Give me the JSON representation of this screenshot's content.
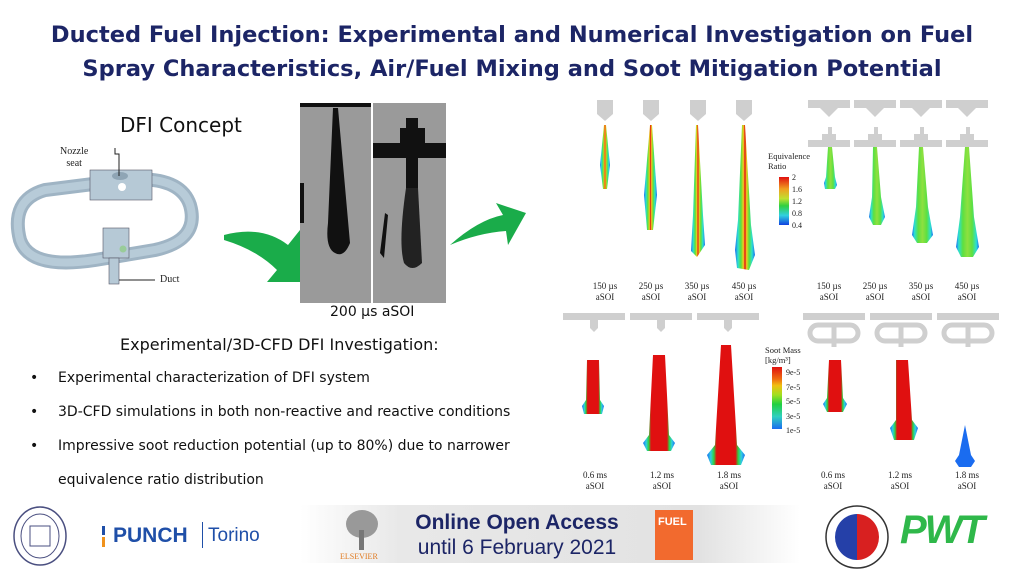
{
  "title": {
    "line1": "Ducted Fuel Injection: Experimental and Numerical Investigation on Fuel",
    "line2": "Spray Characteristics, Air/Fuel Mixing and Soot Mitigation Potential"
  },
  "concept": {
    "heading": "DFI Concept",
    "nozzle_label_1": "Nozzle",
    "nozzle_label_2": "seat",
    "duct_label": "Duct"
  },
  "schlieren": {
    "caption": "200 µs aSOI"
  },
  "equivalence": {
    "legend_title_1": "Equivalence",
    "legend_title_2": "Ratio",
    "ticks": [
      "2",
      "1.6",
      "1.2",
      "0.8",
      "0.4"
    ],
    "labels": [
      "150 µs",
      "250 µs",
      "350 µs",
      "450 µs"
    ],
    "suffix": "aSOI"
  },
  "soot": {
    "legend_title_1": "Soot Mass",
    "legend_title_2": "[kg/m³]",
    "ticks": [
      "9e-5",
      "7e-5",
      "5e-5",
      "3e-5",
      "1e-5"
    ],
    "labels": [
      "0.6 ms",
      "1.2 ms",
      "1.8 ms"
    ],
    "suffix": "aSOI"
  },
  "investigation": {
    "heading": "Experimental/3D-CFD DFI Investigation:",
    "bullets": [
      "Experimental characterization of DFI system",
      "3D-CFD simulations in both non-reactive and reactive conditions",
      "Impressive soot reduction potential (up to 80%) due to narrower",
      "equivalence ratio distribution"
    ]
  },
  "footer": {
    "punch": "PUNCH",
    "torino": "Torino",
    "elsevier": "ELSEVIER",
    "oa_line1": "Online Open Access",
    "oa_line2": "until 6 February 2021",
    "fuel": "FUEL",
    "pwt": "PWT"
  },
  "colors": {
    "title": "#1c2566",
    "arrow": "#1aac4a",
    "pwt": "#2fb84a",
    "fuel": "#f26a2e"
  }
}
